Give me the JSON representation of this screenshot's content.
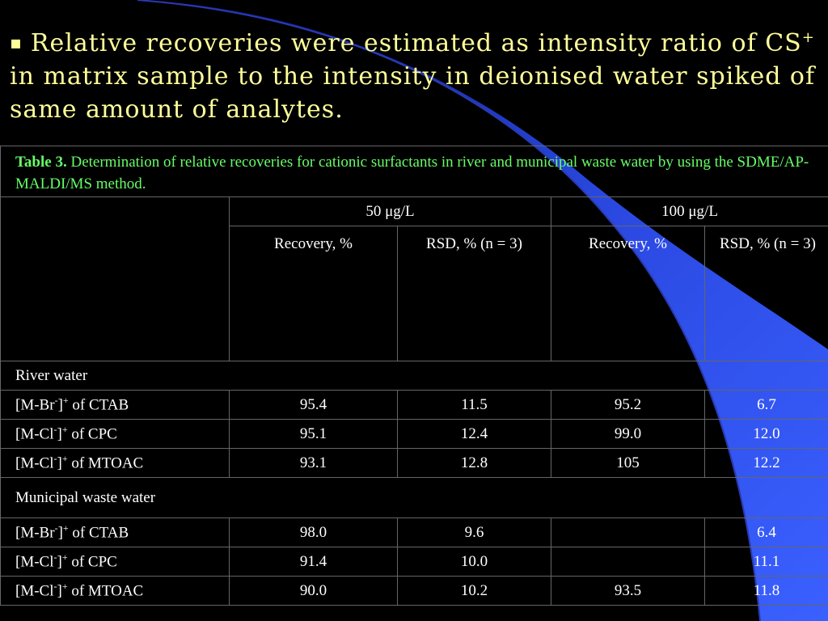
{
  "slide": {
    "bullet": "▪",
    "title_part1": "Relative recoveries were estimated as intensity ratio of CS",
    "title_sup": "+",
    "title_part2": " in matrix sample to the intensity in deionised water spiked of same amount of analytes."
  },
  "table": {
    "caption_label": "Table 3.",
    "caption_text": " Determination of relative recoveries for cationic surfactants in river and municipal waste water by using the SDME/AP-MALDI/MS method.",
    "groups": [
      "50 μg/L",
      "100 μg/L"
    ],
    "subheaders": [
      "Recovery, %",
      "RSD, % (n = 3)",
      "Recovery, %",
      "RSD, % (n = 3)"
    ],
    "sections": [
      {
        "name": "River water",
        "rows": [
          {
            "ion_prefix": "[M-Br",
            "ion_charge_minus": "-",
            "ion_mid": "]",
            "ion_charge_plus": "+",
            "ion_suffix": " of CTAB",
            "values": [
              "95.4",
              "11.5",
              "95.2",
              "6.7"
            ]
          },
          {
            "ion_prefix": "[M-Cl",
            "ion_charge_minus": "-",
            "ion_mid": "]",
            "ion_charge_plus": "+",
            "ion_suffix": " of CPC",
            "values": [
              "95.1",
              "12.4",
              "99.0",
              "12.0"
            ]
          },
          {
            "ion_prefix": "[M-Cl",
            "ion_charge_minus": "-",
            "ion_mid": "]",
            "ion_charge_plus": "+",
            "ion_suffix": " of MTOAC",
            "values": [
              "93.1",
              "12.8",
              "105",
              "12.2"
            ]
          }
        ]
      },
      {
        "name": "Municipal waste water",
        "rows": [
          {
            "ion_prefix": "[M-Br",
            "ion_charge_minus": "-",
            "ion_mid": "]",
            "ion_charge_plus": "+",
            "ion_suffix": " of CTAB",
            "values": [
              "98.0",
              "9.6",
              "",
              "6.4"
            ]
          },
          {
            "ion_prefix": "[M-Cl",
            "ion_charge_minus": "-",
            "ion_mid": "]",
            "ion_charge_plus": "+",
            "ion_suffix": " of CPC",
            "values": [
              "91.4",
              "10.0",
              "",
              "11.1"
            ]
          },
          {
            "ion_prefix": "[M-Cl",
            "ion_charge_minus": "-",
            "ion_mid": "]",
            "ion_charge_plus": "+",
            "ion_suffix": " of MTOAC",
            "values": [
              "90.0",
              "10.2",
              "93.5",
              "11.8"
            ]
          }
        ]
      }
    ]
  },
  "colors": {
    "background": "#000000",
    "title": "#ffff99",
    "caption": "#66ff66",
    "swoosh": "#3355ee",
    "text": "#ffffff"
  }
}
